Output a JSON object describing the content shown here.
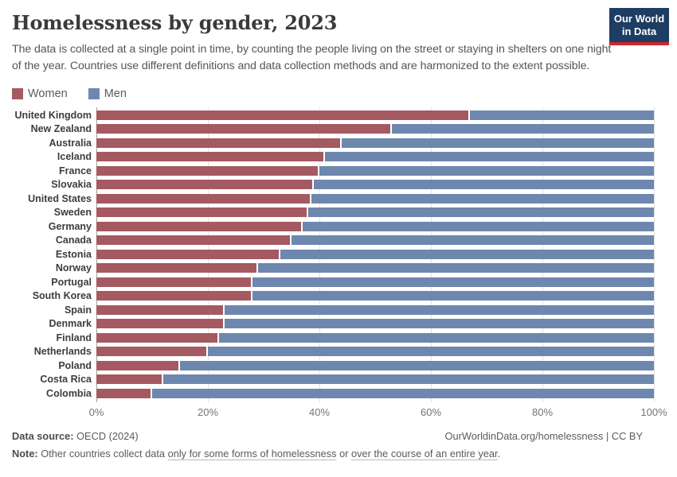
{
  "header": {
    "title": "Homelessness by gender, 2023",
    "subtitle": "The data is collected at a single point in time, by counting the people living on the street or staying in shelters on one night of the year. Countries use different definitions and data collection methods and are harmonized to the extent possible.",
    "logo": {
      "line1": "Our World",
      "line2": "in Data",
      "navy": "#1d3d63",
      "red": "#d0262c"
    }
  },
  "chart_data": {
    "type": "bar",
    "orientation": "horizontal-stacked",
    "title": "Homelessness by gender, 2023",
    "xlabel": "",
    "ylabel": "",
    "xlim": [
      0,
      100
    ],
    "grid": true,
    "legend_position": "top-left",
    "unit": "%",
    "categories": [
      "United Kingdom",
      "New Zealand",
      "Australia",
      "Iceland",
      "France",
      "Slovakia",
      "United States",
      "Sweden",
      "Germany",
      "Canada",
      "Estonia",
      "Norway",
      "Portugal",
      "South Korea",
      "Spain",
      "Denmark",
      "Finland",
      "Netherlands",
      "Poland",
      "Costa Rica",
      "Colombia"
    ],
    "series": [
      {
        "name": "Women",
        "color": "#a55961",
        "values": [
          67,
          53,
          44,
          41,
          40,
          39,
          38.5,
          38,
          37,
          35,
          33,
          29,
          28,
          28,
          23,
          23,
          22,
          20,
          15,
          12,
          10
        ]
      },
      {
        "name": "Men",
        "color": "#6e87ae",
        "values": [
          33,
          47,
          56,
          59,
          60,
          61,
          61.5,
          62,
          63,
          65,
          67,
          71,
          72,
          72,
          77,
          77,
          78,
          80,
          85,
          88,
          90
        ]
      }
    ],
    "xticks": [
      {
        "value": 0,
        "label": "0%"
      },
      {
        "value": 20,
        "label": "20%"
      },
      {
        "value": 40,
        "label": "40%"
      },
      {
        "value": 60,
        "label": "60%"
      },
      {
        "value": 80,
        "label": "80%"
      },
      {
        "value": 100,
        "label": "100%"
      }
    ]
  },
  "footer": {
    "source_label": "Data source:",
    "source_value": " OECD (2024)",
    "attribution": "OurWorldinData.org/homelessness | CC BY",
    "note_label": "Note:",
    "note_pre": " Other countries collect data ",
    "note_link1": "only for some forms of homelessness",
    "note_mid": " or ",
    "note_link2": "over the course of an entire year",
    "note_post": "."
  }
}
